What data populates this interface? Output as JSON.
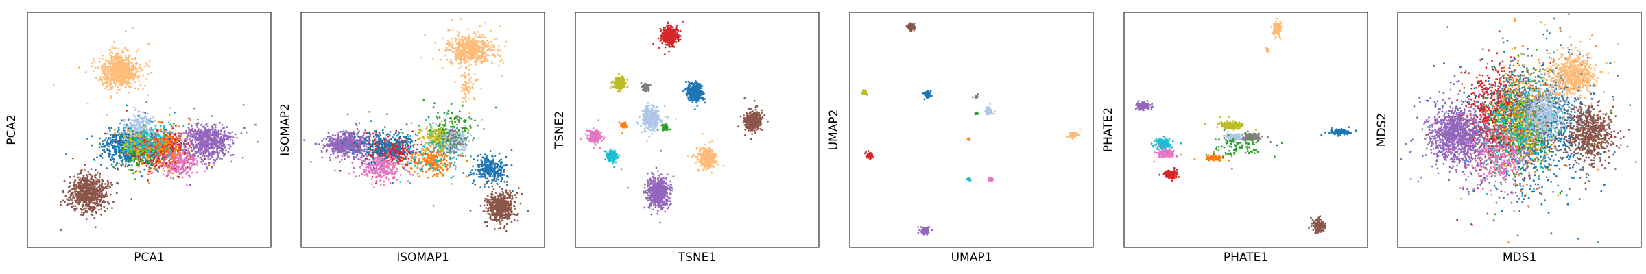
{
  "chart_data": {
    "type": "scatter",
    "title": "",
    "grid": false,
    "legend": "none",
    "cluster_colors": [
      "#1f77b4",
      "#ff7f0e",
      "#2ca02c",
      "#d62728",
      "#9467bd",
      "#8c564b",
      "#e377c2",
      "#7f7f7f",
      "#bcbd22",
      "#17becf",
      "#aec7e8",
      "#ffbb78"
    ],
    "panels": [
      {
        "xlabel": "PCA1",
        "ylabel": "PCA2",
        "xlim": [
          0,
          1
        ],
        "ylim": [
          0,
          1
        ],
        "clusters": [
          {
            "color": "#ffbb78",
            "center": [
              0.38,
              0.75
            ],
            "spread": [
              0.075,
              0.07
            ],
            "n": 700
          },
          {
            "color": "#1f77b4",
            "center": [
              0.42,
              0.43
            ],
            "spread": [
              0.1,
              0.075
            ],
            "n": 650
          },
          {
            "color": "#2ca02c",
            "center": [
              0.48,
              0.41
            ],
            "spread": [
              0.07,
              0.07
            ],
            "n": 180
          },
          {
            "color": "#bcbd22",
            "center": [
              0.46,
              0.44
            ],
            "spread": [
              0.07,
              0.07
            ],
            "n": 200
          },
          {
            "color": "#d62728",
            "center": [
              0.56,
              0.42
            ],
            "spread": [
              0.1,
              0.08
            ],
            "n": 480
          },
          {
            "color": "#e377c2",
            "center": [
              0.63,
              0.36
            ],
            "spread": [
              0.08,
              0.06
            ],
            "n": 220
          },
          {
            "color": "#ff7f0e",
            "center": [
              0.55,
              0.43
            ],
            "spread": [
              0.09,
              0.07
            ],
            "n": 220
          },
          {
            "color": "#17becf",
            "center": [
              0.5,
              0.45
            ],
            "spread": [
              0.1,
              0.07
            ],
            "n": 160
          },
          {
            "color": "#aec7e8",
            "center": [
              0.46,
              0.52
            ],
            "spread": [
              0.06,
              0.05
            ],
            "n": 160
          },
          {
            "color": "#9467bd",
            "center": [
              0.74,
              0.45
            ],
            "spread": [
              0.09,
              0.07
            ],
            "n": 700
          },
          {
            "color": "#8c564b",
            "center": [
              0.25,
              0.23
            ],
            "spread": [
              0.075,
              0.075
            ],
            "n": 700
          }
        ]
      },
      {
        "xlabel": "ISOMAP1",
        "ylabel": "ISOMAP2",
        "xlim": [
          0,
          1
        ],
        "ylim": [
          0,
          1
        ],
        "clusters": [
          {
            "color": "#ffbb78",
            "center": [
              0.7,
              0.84
            ],
            "spread": [
              0.09,
              0.06
            ],
            "n": 600
          },
          {
            "color": "#ffbb78",
            "center": [
              0.68,
              0.68
            ],
            "spread": [
              0.03,
              0.06
            ],
            "n": 60
          },
          {
            "color": "#9467bd",
            "center": [
              0.19,
              0.44
            ],
            "spread": [
              0.08,
              0.045
            ],
            "n": 650
          },
          {
            "color": "#d62728",
            "center": [
              0.37,
              0.41
            ],
            "spread": [
              0.08,
              0.05
            ],
            "n": 400
          },
          {
            "color": "#e377c2",
            "center": [
              0.33,
              0.34
            ],
            "spread": [
              0.08,
              0.05
            ],
            "n": 300
          },
          {
            "color": "#1f77b4",
            "center": [
              0.35,
              0.43
            ],
            "spread": [
              0.13,
              0.06
            ],
            "n": 300
          },
          {
            "color": "#1f77b4",
            "center": [
              0.77,
              0.33
            ],
            "spread": [
              0.06,
              0.05
            ],
            "n": 300
          },
          {
            "color": "#ff7f0e",
            "center": [
              0.53,
              0.37
            ],
            "spread": [
              0.08,
              0.06
            ],
            "n": 220
          },
          {
            "color": "#bcbd22",
            "center": [
              0.57,
              0.47
            ],
            "spread": [
              0.06,
              0.05
            ],
            "n": 220
          },
          {
            "color": "#aec7e8",
            "center": [
              0.63,
              0.46
            ],
            "spread": [
              0.05,
              0.05
            ],
            "n": 220
          },
          {
            "color": "#7f7f7f",
            "center": [
              0.62,
              0.45
            ],
            "spread": [
              0.06,
              0.06
            ],
            "n": 100
          },
          {
            "color": "#17becf",
            "center": [
              0.55,
              0.4
            ],
            "spread": [
              0.15,
              0.1
            ],
            "n": 90
          },
          {
            "color": "#2ca02c",
            "center": [
              0.62,
              0.52
            ],
            "spread": [
              0.1,
              0.08
            ],
            "n": 100
          },
          {
            "color": "#8c564b",
            "center": [
              0.82,
              0.17
            ],
            "spread": [
              0.05,
              0.055
            ],
            "n": 600
          }
        ]
      },
      {
        "xlabel": "TSNE1",
        "ylabel": "TSNE2",
        "xlim": [
          0,
          1
        ],
        "ylim": [
          0,
          1
        ],
        "clusters": [
          {
            "color": "#d62728",
            "center": [
              0.39,
              0.9
            ],
            "spread": [
              0.03,
              0.035
            ],
            "n": 400
          },
          {
            "color": "#bcbd22",
            "center": [
              0.18,
              0.7
            ],
            "spread": [
              0.022,
              0.022
            ],
            "n": 220
          },
          {
            "color": "#7f7f7f",
            "center": [
              0.29,
              0.68
            ],
            "spread": [
              0.014,
              0.014
            ],
            "n": 80
          },
          {
            "color": "#1f77b4",
            "center": [
              0.49,
              0.66
            ],
            "spread": [
              0.03,
              0.035
            ],
            "n": 380
          },
          {
            "color": "#aec7e8",
            "center": [
              0.31,
              0.55
            ],
            "spread": [
              0.03,
              0.04
            ],
            "n": 400
          },
          {
            "color": "#ff7f0e",
            "center": [
              0.2,
              0.52
            ],
            "spread": [
              0.012,
              0.012
            ],
            "n": 50
          },
          {
            "color": "#2ca02c",
            "center": [
              0.37,
              0.51
            ],
            "spread": [
              0.012,
              0.012
            ],
            "n": 60
          },
          {
            "color": "#8c564b",
            "center": [
              0.73,
              0.54
            ],
            "spread": [
              0.032,
              0.038
            ],
            "n": 400
          },
          {
            "color": "#e377c2",
            "center": [
              0.08,
              0.47
            ],
            "spread": [
              0.025,
              0.025
            ],
            "n": 220
          },
          {
            "color": "#17becf",
            "center": [
              0.15,
              0.39
            ],
            "spread": [
              0.02,
              0.02
            ],
            "n": 160
          },
          {
            "color": "#ffbb78",
            "center": [
              0.54,
              0.38
            ],
            "spread": [
              0.035,
              0.038
            ],
            "n": 400
          },
          {
            "color": "#9467bd",
            "center": [
              0.34,
              0.23
            ],
            "spread": [
              0.043,
              0.055
            ],
            "n": 650
          }
        ]
      },
      {
        "xlabel": "UMAP1",
        "ylabel": "UMAP2",
        "xlim": [
          0,
          1
        ],
        "ylim": [
          0,
          1
        ],
        "clusters": [
          {
            "color": "#8c564b",
            "center": [
              0.25,
              0.94
            ],
            "spread": [
              0.012,
              0.012
            ],
            "n": 150
          },
          {
            "color": "#bcbd22",
            "center": [
              0.06,
              0.66
            ],
            "spread": [
              0.008,
              0.008
            ],
            "n": 80
          },
          {
            "color": "#1f77b4",
            "center": [
              0.32,
              0.65
            ],
            "spread": [
              0.01,
              0.01
            ],
            "n": 120
          },
          {
            "color": "#7f7f7f",
            "center": [
              0.52,
              0.64
            ],
            "spread": [
              0.005,
              0.005
            ],
            "n": 30
          },
          {
            "color": "#aec7e8",
            "center": [
              0.57,
              0.58
            ],
            "spread": [
              0.01,
              0.012
            ],
            "n": 120
          },
          {
            "color": "#2ca02c",
            "center": [
              0.52,
              0.57
            ],
            "spread": [
              0.006,
              0.004
            ],
            "n": 30
          },
          {
            "color": "#ff7f0e",
            "center": [
              0.49,
              0.46
            ],
            "spread": [
              0.004,
              0.004
            ],
            "n": 20
          },
          {
            "color": "#ffbb78",
            "center": [
              0.92,
              0.48
            ],
            "spread": [
              0.012,
              0.01
            ],
            "n": 120
          },
          {
            "color": "#d62728",
            "center": [
              0.08,
              0.39
            ],
            "spread": [
              0.01,
              0.01
            ],
            "n": 120
          },
          {
            "color": "#17becf",
            "center": [
              0.49,
              0.29
            ],
            "spread": [
              0.006,
              0.004
            ],
            "n": 40
          },
          {
            "color": "#e377c2",
            "center": [
              0.58,
              0.29
            ],
            "spread": [
              0.008,
              0.006
            ],
            "n": 50
          },
          {
            "color": "#9467bd",
            "center": [
              0.31,
              0.07
            ],
            "spread": [
              0.013,
              0.013
            ],
            "n": 160
          }
        ]
      },
      {
        "xlabel": "PHATE1",
        "ylabel": "PHATE2",
        "xlim": [
          0,
          1
        ],
        "ylim": [
          0,
          1
        ],
        "clusters": [
          {
            "color": "#ffbb78",
            "center": [
              0.63,
              0.93
            ],
            "spread": [
              0.015,
              0.025
            ],
            "n": 150
          },
          {
            "color": "#ffbb78",
            "center": [
              0.59,
              0.84
            ],
            "spread": [
              0.005,
              0.01
            ],
            "n": 20
          },
          {
            "color": "#9467bd",
            "center": [
              0.08,
              0.6
            ],
            "spread": [
              0.025,
              0.012
            ],
            "n": 180
          },
          {
            "color": "#bcbd22",
            "center": [
              0.44,
              0.52
            ],
            "spread": [
              0.04,
              0.015
            ],
            "n": 200
          },
          {
            "color": "#aec7e8",
            "center": [
              0.45,
              0.47
            ],
            "spread": [
              0.03,
              0.012
            ],
            "n": 180
          },
          {
            "color": "#7f7f7f",
            "center": [
              0.52,
              0.47
            ],
            "spread": [
              0.03,
              0.015
            ],
            "n": 150
          },
          {
            "color": "#1f77b4",
            "center": [
              0.89,
              0.49
            ],
            "spread": [
              0.04,
              0.008
            ],
            "n": 180
          },
          {
            "color": "#17becf",
            "center": [
              0.16,
              0.44
            ],
            "spread": [
              0.03,
              0.02
            ],
            "n": 180
          },
          {
            "color": "#e377c2",
            "center": [
              0.17,
              0.4
            ],
            "spread": [
              0.03,
              0.015
            ],
            "n": 150
          },
          {
            "color": "#ff7f0e",
            "center": [
              0.37,
              0.38
            ],
            "spread": [
              0.035,
              0.01
            ],
            "n": 120
          },
          {
            "color": "#2ca02c",
            "center": [
              0.47,
              0.43
            ],
            "spread": [
              0.1,
              0.04
            ],
            "n": 100
          },
          {
            "color": "#d62728",
            "center": [
              0.19,
              0.31
            ],
            "spread": [
              0.02,
              0.015
            ],
            "n": 180
          },
          {
            "color": "#8c564b",
            "center": [
              0.8,
              0.09
            ],
            "spread": [
              0.025,
              0.025
            ],
            "n": 150
          }
        ]
      },
      {
        "xlabel": "MDS1",
        "ylabel": "MDS2",
        "xlim": [
          0,
          1
        ],
        "ylim": [
          0,
          1
        ],
        "clusters": [
          {
            "color": "#1f77b4",
            "center": [
              0.56,
              0.52
            ],
            "spread": [
              0.24,
              0.26
            ],
            "n": 1100
          },
          {
            "color": "#d62728",
            "center": [
              0.4,
              0.56
            ],
            "spread": [
              0.12,
              0.2
            ],
            "n": 650
          },
          {
            "color": "#ff7f0e",
            "center": [
              0.53,
              0.53
            ],
            "spread": [
              0.13,
              0.2
            ],
            "n": 350
          },
          {
            "color": "#bcbd22",
            "center": [
              0.51,
              0.54
            ],
            "spread": [
              0.11,
              0.18
            ],
            "n": 320
          },
          {
            "color": "#2ca02c",
            "center": [
              0.5,
              0.5
            ],
            "spread": [
              0.15,
              0.2
            ],
            "n": 260
          },
          {
            "color": "#17becf",
            "center": [
              0.51,
              0.52
            ],
            "spread": [
              0.16,
              0.18
            ],
            "n": 260
          },
          {
            "color": "#e377c2",
            "center": [
              0.42,
              0.37
            ],
            "spread": [
              0.12,
              0.12
            ],
            "n": 320
          },
          {
            "color": "#7f7f7f",
            "center": [
              0.55,
              0.62
            ],
            "spread": [
              0.12,
              0.15
            ],
            "n": 220
          },
          {
            "color": "#aec7e8",
            "center": [
              0.6,
              0.57
            ],
            "spread": [
              0.08,
              0.1
            ],
            "n": 350
          },
          {
            "color": "#9467bd",
            "center": [
              0.24,
              0.48
            ],
            "spread": [
              0.11,
              0.12
            ],
            "n": 1000
          },
          {
            "color": "#ffbb78",
            "center": [
              0.72,
              0.73
            ],
            "spread": [
              0.09,
              0.09
            ],
            "n": 650
          },
          {
            "color": "#8c564b",
            "center": [
              0.79,
              0.48
            ],
            "spread": [
              0.09,
              0.11
            ],
            "n": 650
          }
        ]
      }
    ]
  }
}
